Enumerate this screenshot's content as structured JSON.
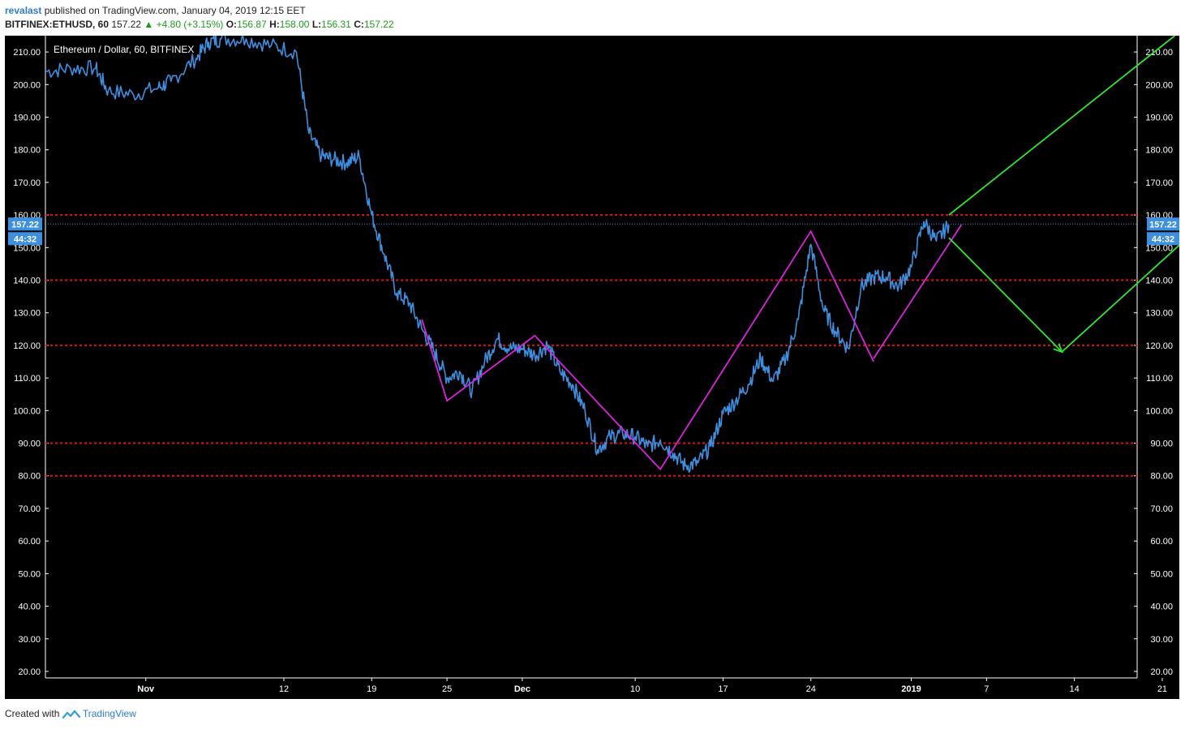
{
  "header": {
    "author": "revalast",
    "published_text": "published on TradingView.com, January 04, 2019 12:15 EET",
    "symbol": "BITFINEX:ETHUSD, 60",
    "last": "157.22",
    "change": "+4.80 (+3.15%)",
    "open_label": "O:",
    "open": "156.87",
    "high_label": "H:",
    "high": "158.00",
    "low_label": "L:",
    "low": "156.31",
    "close_label": "C:",
    "close": "157.22"
  },
  "footer": {
    "created_with": "Created with",
    "brand": "TradingView"
  },
  "colors": {
    "background": "#000000",
    "price_line": "#3d8fe0",
    "support_resistance": "#e01010",
    "zigzag": "#e020e0",
    "projection": "#2ee82e",
    "axis_text": "#ffffff",
    "badge": "#3d8fe0"
  },
  "chart_data": {
    "type": "line",
    "title": "Ethereum / Dollar, 60, BITFINEX",
    "xlabel": "",
    "ylabel": "",
    "ylim": [
      18,
      215
    ],
    "yticks": [
      20,
      30,
      40,
      50,
      60,
      70,
      80,
      90,
      100,
      110,
      120,
      130,
      140,
      150,
      160,
      170,
      180,
      190,
      200,
      210
    ],
    "xlim": [
      "2018-10-24",
      "2019-01-19"
    ],
    "xticks": [
      {
        "date": "2018-11-01",
        "label": "Nov",
        "bold": true
      },
      {
        "date": "2018-11-12",
        "label": "12",
        "bold": false
      },
      {
        "date": "2018-11-19",
        "label": "19",
        "bold": false
      },
      {
        "date": "2018-11-25",
        "label": "25",
        "bold": false
      },
      {
        "date": "2018-12-01",
        "label": "Dec",
        "bold": true
      },
      {
        "date": "2018-12-10",
        "label": "10",
        "bold": false
      },
      {
        "date": "2018-12-17",
        "label": "17",
        "bold": false
      },
      {
        "date": "2018-12-24",
        "label": "24",
        "bold": false
      },
      {
        "date": "2019-01-01",
        "label": "2019",
        "bold": true
      },
      {
        "date": "2019-01-07",
        "label": "7",
        "bold": false
      },
      {
        "date": "2019-01-14",
        "label": "14",
        "bold": false
      },
      {
        "date": "2019-01-21",
        "label": "21",
        "bold": false
      }
    ],
    "grid": false,
    "series": [
      {
        "name": "ETHUSD",
        "x": [
          "2018-10-24",
          "2018-10-26",
          "2018-10-28",
          "2018-10-29",
          "2018-10-31",
          "2018-11-02",
          "2018-11-03",
          "2018-11-05",
          "2018-11-06",
          "2018-11-07",
          "2018-11-09",
          "2018-11-11",
          "2018-11-13",
          "2018-11-14",
          "2018-11-15",
          "2018-11-16",
          "2018-11-17",
          "2018-11-18",
          "2018-11-19",
          "2018-11-20",
          "2018-11-21",
          "2018-11-22",
          "2018-11-23",
          "2018-11-24",
          "2018-11-25",
          "2018-11-26",
          "2018-11-27",
          "2018-11-28",
          "2018-11-29",
          "2018-11-30",
          "2018-12-01",
          "2018-12-02",
          "2018-12-03",
          "2018-12-04",
          "2018-12-05",
          "2018-12-06",
          "2018-12-07",
          "2018-12-08",
          "2018-12-09",
          "2018-12-10",
          "2018-12-11",
          "2018-12-12",
          "2018-12-13",
          "2018-12-14",
          "2018-12-15",
          "2018-12-16",
          "2018-12-17",
          "2018-12-18",
          "2018-12-19",
          "2018-12-20",
          "2018-12-21",
          "2018-12-22",
          "2018-12-23",
          "2018-12-24",
          "2018-12-25",
          "2018-12-26",
          "2018-12-27",
          "2018-12-28",
          "2018-12-29",
          "2018-12-30",
          "2018-12-31",
          "2019-01-01",
          "2019-01-02",
          "2019-01-03",
          "2019-01-04"
        ],
        "y": [
          204,
          205,
          205,
          198,
          197,
          199,
          201,
          208,
          213,
          214,
          214,
          212,
          210,
          185,
          178,
          177,
          176,
          178,
          160,
          148,
          136,
          133,
          125,
          118,
          110,
          112,
          106,
          115,
          122,
          119,
          119,
          117,
          120,
          112,
          108,
          100,
          88,
          92,
          93,
          92,
          89,
          91,
          87,
          83,
          84,
          89,
          99,
          103,
          108,
          116,
          109,
          116,
          128,
          151,
          131,
          124,
          119,
          138,
          141,
          141,
          138,
          144,
          158,
          152,
          157
        ]
      }
    ],
    "horizontal_lines": [
      160,
      140,
      120,
      90,
      80
    ],
    "zigzag": {
      "x": [
        "2018-11-23",
        "2018-11-25",
        "2018-12-02",
        "2018-12-12",
        "2018-12-24",
        "2018-12-29"
      ],
      "y": [
        128,
        103,
        123,
        82,
        155,
        115
      ]
    },
    "trendline": {
      "x": [
        "2018-12-29",
        "2019-01-05"
      ],
      "y": [
        116,
        157
      ]
    },
    "projection_arrows": [
      {
        "x": [
          "2019-01-04",
          "2019-01-22"
        ],
        "y": [
          160,
          215
        ]
      },
      {
        "x": [
          "2019-01-04",
          "2019-01-13"
        ],
        "y": [
          153,
          118
        ],
        "arrowhead": true
      },
      {
        "x": [
          "2019-01-13",
          "2019-01-31"
        ],
        "y": [
          118,
          181
        ]
      }
    ],
    "last_price_label": "157.22",
    "countdown_label": "44:32"
  }
}
